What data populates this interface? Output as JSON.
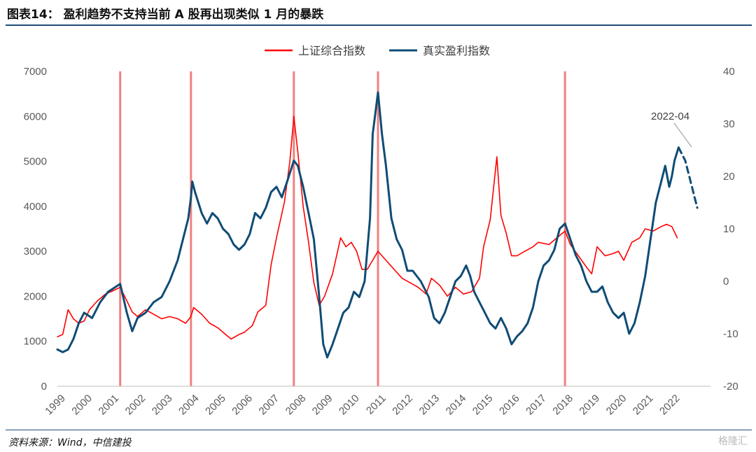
{
  "title": "图表14： 盈利趋势不支持当前 A 股再出现类似 1 月的暴跌",
  "source": "资料来源：Wind，中信建投",
  "watermark": "格隆汇",
  "colors": {
    "shanghai": "#ff0000",
    "profit": "#0f4c75",
    "vline": "#f08080",
    "header_rule": "#1f4e79"
  },
  "chart_data": {
    "type": "line",
    "x": [
      "1999",
      "2000",
      "2001",
      "2002",
      "2003",
      "2004",
      "2005",
      "2006",
      "2007",
      "2008",
      "2009",
      "2010",
      "2011",
      "2012",
      "2013",
      "2014",
      "2015",
      "2016",
      "2017",
      "2018",
      "2019",
      "2020",
      "2021",
      "2022"
    ],
    "y_left": {
      "ticks": [
        0,
        1000,
        2000,
        3000,
        4000,
        5000,
        6000,
        7000
      ],
      "range": [
        0,
        7000
      ]
    },
    "y_right": {
      "ticks": [
        -20,
        -10,
        0,
        10,
        20,
        30,
        40
      ],
      "range": [
        -20,
        40
      ]
    },
    "legend": [
      "上证综合指数",
      "真实盈利指数"
    ],
    "legend_position": "top",
    "grid": false,
    "annotation": "2022-04",
    "recession_lines": [
      2001.35,
      2004.0,
      2007.85,
      2011.0,
      2018.0
    ],
    "series": [
      {
        "name": "上证综合指数",
        "axis": "left",
        "points": [
          [
            1999.0,
            1100
          ],
          [
            1999.2,
            1150
          ],
          [
            1999.4,
            1700
          ],
          [
            1999.6,
            1500
          ],
          [
            1999.8,
            1400
          ],
          [
            2000.0,
            1450
          ],
          [
            2000.2,
            1700
          ],
          [
            2000.5,
            1900
          ],
          [
            2000.8,
            2050
          ],
          [
            2001.0,
            2100
          ],
          [
            2001.35,
            2200
          ],
          [
            2001.6,
            1900
          ],
          [
            2001.8,
            1650
          ],
          [
            2002.0,
            1550
          ],
          [
            2002.3,
            1700
          ],
          [
            2002.6,
            1600
          ],
          [
            2002.9,
            1500
          ],
          [
            2003.2,
            1550
          ],
          [
            2003.5,
            1500
          ],
          [
            2003.8,
            1400
          ],
          [
            2004.0,
            1550
          ],
          [
            2004.1,
            1750
          ],
          [
            2004.4,
            1600
          ],
          [
            2004.7,
            1400
          ],
          [
            2005.0,
            1300
          ],
          [
            2005.3,
            1150
          ],
          [
            2005.5,
            1050
          ],
          [
            2005.8,
            1150
          ],
          [
            2006.0,
            1200
          ],
          [
            2006.3,
            1350
          ],
          [
            2006.5,
            1650
          ],
          [
            2006.8,
            1800
          ],
          [
            2007.0,
            2700
          ],
          [
            2007.2,
            3300
          ],
          [
            2007.5,
            4100
          ],
          [
            2007.7,
            5000
          ],
          [
            2007.85,
            6000
          ],
          [
            2008.0,
            5200
          ],
          [
            2008.2,
            4000
          ],
          [
            2008.4,
            3200
          ],
          [
            2008.6,
            2300
          ],
          [
            2008.8,
            1800
          ],
          [
            2009.0,
            2000
          ],
          [
            2009.3,
            2500
          ],
          [
            2009.6,
            3300
          ],
          [
            2009.8,
            3100
          ],
          [
            2010.0,
            3200
          ],
          [
            2010.2,
            3000
          ],
          [
            2010.4,
            2600
          ],
          [
            2010.6,
            2600
          ],
          [
            2010.9,
            2900
          ],
          [
            2011.0,
            3000
          ],
          [
            2011.3,
            2800
          ],
          [
            2011.6,
            2600
          ],
          [
            2011.9,
            2400
          ],
          [
            2012.2,
            2300
          ],
          [
            2012.5,
            2200
          ],
          [
            2012.8,
            2050
          ],
          [
            2013.0,
            2400
          ],
          [
            2013.3,
            2250
          ],
          [
            2013.6,
            2000
          ],
          [
            2013.9,
            2200
          ],
          [
            2014.2,
            2050
          ],
          [
            2014.5,
            2100
          ],
          [
            2014.8,
            2400
          ],
          [
            2014.95,
            3100
          ],
          [
            2015.2,
            3700
          ],
          [
            2015.45,
            5100
          ],
          [
            2015.6,
            3800
          ],
          [
            2015.8,
            3400
          ],
          [
            2016.0,
            2900
          ],
          [
            2016.2,
            2900
          ],
          [
            2016.5,
            3000
          ],
          [
            2016.8,
            3100
          ],
          [
            2017.0,
            3200
          ],
          [
            2017.4,
            3150
          ],
          [
            2017.8,
            3350
          ],
          [
            2018.0,
            3450
          ],
          [
            2018.2,
            3150
          ],
          [
            2018.5,
            2900
          ],
          [
            2018.8,
            2650
          ],
          [
            2019.0,
            2500
          ],
          [
            2019.2,
            3100
          ],
          [
            2019.5,
            2900
          ],
          [
            2019.8,
            2950
          ],
          [
            2020.0,
            3000
          ],
          [
            2020.2,
            2800
          ],
          [
            2020.5,
            3200
          ],
          [
            2020.8,
            3300
          ],
          [
            2021.0,
            3500
          ],
          [
            2021.3,
            3450
          ],
          [
            2021.6,
            3550
          ],
          [
            2021.8,
            3600
          ],
          [
            2022.0,
            3550
          ],
          [
            2022.2,
            3300
          ]
        ]
      },
      {
        "name": "真实盈利指数",
        "axis": "right",
        "points": [
          [
            1999.0,
            -13
          ],
          [
            1999.2,
            -13.5
          ],
          [
            1999.4,
            -13
          ],
          [
            1999.6,
            -11
          ],
          [
            1999.8,
            -8
          ],
          [
            2000.0,
            -6
          ],
          [
            2000.3,
            -7
          ],
          [
            2000.6,
            -4
          ],
          [
            2000.9,
            -2
          ],
          [
            2001.2,
            -1
          ],
          [
            2001.35,
            -0.5
          ],
          [
            2001.6,
            -6
          ],
          [
            2001.8,
            -9.5
          ],
          [
            2002.0,
            -7
          ],
          [
            2002.3,
            -6
          ],
          [
            2002.6,
            -4
          ],
          [
            2002.9,
            -3
          ],
          [
            2003.2,
            0
          ],
          [
            2003.5,
            4
          ],
          [
            2003.7,
            8
          ],
          [
            2003.9,
            12
          ],
          [
            2004.0,
            16
          ],
          [
            2004.05,
            19
          ],
          [
            2004.15,
            17
          ],
          [
            2004.4,
            13
          ],
          [
            2004.6,
            11
          ],
          [
            2004.8,
            13
          ],
          [
            2005.0,
            12
          ],
          [
            2005.2,
            10
          ],
          [
            2005.4,
            9
          ],
          [
            2005.6,
            7
          ],
          [
            2005.8,
            6
          ],
          [
            2006.0,
            7
          ],
          [
            2006.2,
            9
          ],
          [
            2006.4,
            13
          ],
          [
            2006.6,
            12
          ],
          [
            2006.8,
            14
          ],
          [
            2007.0,
            17
          ],
          [
            2007.2,
            18
          ],
          [
            2007.4,
            16
          ],
          [
            2007.6,
            19
          ],
          [
            2007.85,
            23
          ],
          [
            2008.0,
            22
          ],
          [
            2008.1,
            20
          ],
          [
            2008.2,
            18
          ],
          [
            2008.4,
            13
          ],
          [
            2008.6,
            8
          ],
          [
            2008.8,
            -3
          ],
          [
            2008.95,
            -12
          ],
          [
            2009.1,
            -14.5
          ],
          [
            2009.3,
            -12
          ],
          [
            2009.5,
            -9
          ],
          [
            2009.7,
            -6
          ],
          [
            2009.9,
            -5
          ],
          [
            2010.1,
            -2
          ],
          [
            2010.3,
            -3
          ],
          [
            2010.5,
            0
          ],
          [
            2010.7,
            12
          ],
          [
            2010.8,
            28
          ],
          [
            2011.0,
            36
          ],
          [
            2011.15,
            28
          ],
          [
            2011.3,
            22
          ],
          [
            2011.5,
            12
          ],
          [
            2011.7,
            8
          ],
          [
            2011.9,
            6
          ],
          [
            2012.1,
            2
          ],
          [
            2012.3,
            2
          ],
          [
            2012.6,
            0
          ],
          [
            2012.9,
            -3
          ],
          [
            2013.1,
            -7
          ],
          [
            2013.3,
            -8
          ],
          [
            2013.5,
            -6
          ],
          [
            2013.7,
            -3
          ],
          [
            2013.9,
            0
          ],
          [
            2014.1,
            1
          ],
          [
            2014.3,
            3
          ],
          [
            2014.45,
            1
          ],
          [
            2014.6,
            -2
          ],
          [
            2014.8,
            -4
          ],
          [
            2015.0,
            -6
          ],
          [
            2015.2,
            -8
          ],
          [
            2015.4,
            -9
          ],
          [
            2015.6,
            -7
          ],
          [
            2015.8,
            -9
          ],
          [
            2016.0,
            -12
          ],
          [
            2016.2,
            -10.5
          ],
          [
            2016.4,
            -9.5
          ],
          [
            2016.6,
            -8
          ],
          [
            2016.8,
            -5
          ],
          [
            2017.0,
            0
          ],
          [
            2017.2,
            3
          ],
          [
            2017.4,
            4
          ],
          [
            2017.6,
            6
          ],
          [
            2017.8,
            10
          ],
          [
            2018.0,
            11
          ],
          [
            2018.2,
            8
          ],
          [
            2018.4,
            5
          ],
          [
            2018.6,
            3
          ],
          [
            2018.8,
            0
          ],
          [
            2019.0,
            -2
          ],
          [
            2019.2,
            -2
          ],
          [
            2019.4,
            -1
          ],
          [
            2019.6,
            -4
          ],
          [
            2019.8,
            -6
          ],
          [
            2020.0,
            -7
          ],
          [
            2020.2,
            -6
          ],
          [
            2020.4,
            -10
          ],
          [
            2020.6,
            -8
          ],
          [
            2020.8,
            -4
          ],
          [
            2021.0,
            1
          ],
          [
            2021.2,
            8
          ],
          [
            2021.4,
            15
          ],
          [
            2021.6,
            19
          ],
          [
            2021.75,
            22
          ],
          [
            2021.9,
            18
          ],
          [
            2022.0,
            20
          ],
          [
            2022.1,
            23
          ],
          [
            2022.25,
            25.5
          ]
        ]
      },
      {
        "name": "真实盈利指数预测",
        "axis": "right",
        "dashed": true,
        "points": [
          [
            2022.25,
            25.5
          ],
          [
            2022.5,
            23
          ],
          [
            2022.75,
            18
          ],
          [
            2022.95,
            14
          ]
        ]
      }
    ]
  }
}
